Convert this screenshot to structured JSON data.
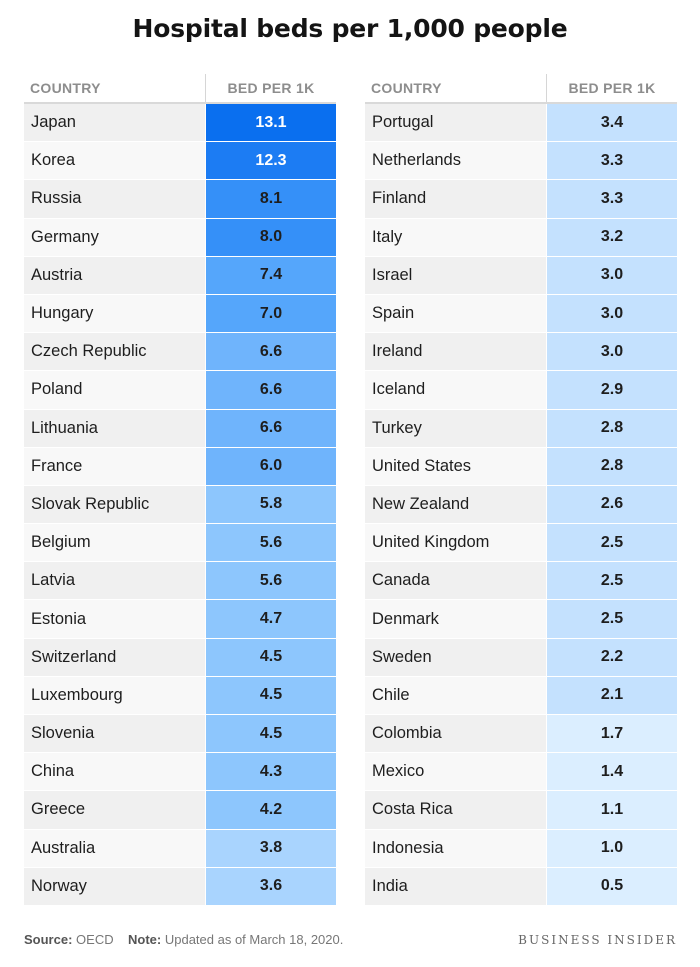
{
  "title": "Hospital beds per 1,000 people",
  "headers": {
    "country": "COUNTRY",
    "value": "BED PER 1K"
  },
  "footer": {
    "source_label": "Source:",
    "source_value": "OECD",
    "note_label": "Note:",
    "note_value": "Updated as of March 18, 2020.",
    "brand": "BUSINESS INSIDER"
  },
  "colors": {
    "tier_13": "#0a6fef",
    "tier_12": "#1c7cf3",
    "tier_8": "#3590f8",
    "tier_7": "#55a6fb",
    "tier_6": "#6fb4fc",
    "tier_5": "#8dc6fd",
    "tier_4": "#a9d4fe",
    "tier_3": "#c4e1fe",
    "tier_low": "#dbeeff"
  },
  "chart_data": {
    "type": "table",
    "title": "Hospital beds per 1,000 people",
    "columns": [
      "COUNTRY",
      "BED PER 1K"
    ],
    "left_rows": [
      {
        "country": "Japan",
        "value": "13.1"
      },
      {
        "country": "Korea",
        "value": "12.3"
      },
      {
        "country": "Russia",
        "value": "8.1"
      },
      {
        "country": "Germany",
        "value": "8.0"
      },
      {
        "country": "Austria",
        "value": "7.4"
      },
      {
        "country": "Hungary",
        "value": "7.0"
      },
      {
        "country": "Czech Republic",
        "value": "6.6"
      },
      {
        "country": "Poland",
        "value": "6.6"
      },
      {
        "country": "Lithuania",
        "value": "6.6"
      },
      {
        "country": "France",
        "value": "6.0"
      },
      {
        "country": "Slovak Republic",
        "value": "5.8"
      },
      {
        "country": "Belgium",
        "value": "5.6"
      },
      {
        "country": "Latvia",
        "value": "5.6"
      },
      {
        "country": "Estonia",
        "value": "4.7"
      },
      {
        "country": "Switzerland",
        "value": "4.5"
      },
      {
        "country": "Luxembourg",
        "value": "4.5"
      },
      {
        "country": "Slovenia",
        "value": "4.5"
      },
      {
        "country": "China",
        "value": "4.3"
      },
      {
        "country": "Greece",
        "value": "4.2"
      },
      {
        "country": "Australia",
        "value": "3.8"
      },
      {
        "country": "Norway",
        "value": "3.6"
      }
    ],
    "right_rows": [
      {
        "country": "Portugal",
        "value": "3.4"
      },
      {
        "country": "Netherlands",
        "value": "3.3"
      },
      {
        "country": "Finland",
        "value": "3.3"
      },
      {
        "country": "Italy",
        "value": "3.2"
      },
      {
        "country": "Israel",
        "value": "3.0"
      },
      {
        "country": "Spain",
        "value": "3.0"
      },
      {
        "country": "Ireland",
        "value": "3.0"
      },
      {
        "country": "Iceland",
        "value": "2.9"
      },
      {
        "country": "Turkey",
        "value": "2.8"
      },
      {
        "country": "United States",
        "value": "2.8"
      },
      {
        "country": "New Zealand",
        "value": "2.6"
      },
      {
        "country": "United Kingdom",
        "value": "2.5"
      },
      {
        "country": "Canada",
        "value": "2.5"
      },
      {
        "country": "Denmark",
        "value": "2.5"
      },
      {
        "country": "Sweden",
        "value": "2.2"
      },
      {
        "country": "Chile",
        "value": "2.1"
      },
      {
        "country": "Colombia",
        "value": "1.7"
      },
      {
        "country": "Mexico",
        "value": "1.4"
      },
      {
        "country": "Costa Rica",
        "value": "1.1"
      },
      {
        "country": "Indonesia",
        "value": "1.0"
      },
      {
        "country": "India",
        "value": "0.5"
      }
    ]
  }
}
